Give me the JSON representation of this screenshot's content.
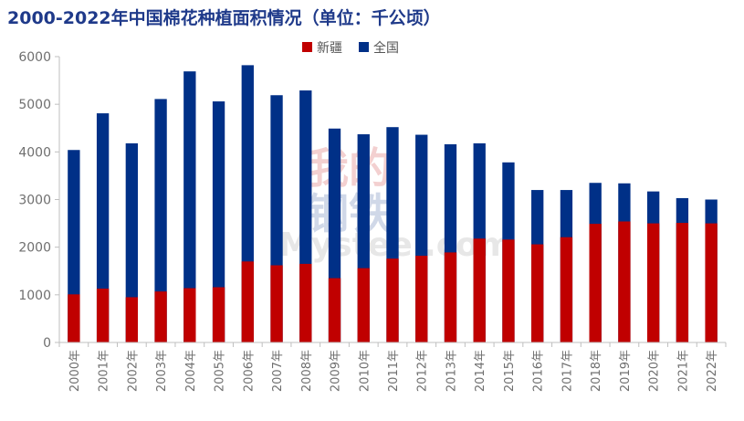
{
  "chart_data": {
    "type": "bar",
    "title": "2000-2022年中国棉花种植面积情况（单位：千公顷）",
    "categories": [
      "2000年",
      "2001年",
      "2002年",
      "2003年",
      "2004年",
      "2005年",
      "2006年",
      "2007年",
      "2008年",
      "2009年",
      "2010年",
      "2011年",
      "2012年",
      "2013年",
      "2014年",
      "2015年",
      "2016年",
      "2017年",
      "2018年",
      "2019年",
      "2020年",
      "2021年",
      "2022年"
    ],
    "series": [
      {
        "name": "新疆",
        "color": "#c00000",
        "values": [
          1010,
          1130,
          950,
          1070,
          1140,
          1160,
          1700,
          1620,
          1650,
          1350,
          1560,
          1760,
          1820,
          1890,
          2180,
          2160,
          2060,
          2210,
          2490,
          2540,
          2500,
          2510,
          2500
        ]
      },
      {
        "name": "全国",
        "color": "#003087",
        "values": [
          4040,
          4810,
          4180,
          5110,
          5690,
          5060,
          5820,
          5190,
          5290,
          4490,
          4370,
          4520,
          4360,
          4160,
          4180,
          3780,
          3200,
          3200,
          3350,
          3340,
          3170,
          3030,
          3000
        ]
      }
    ],
    "ylim": [
      0,
      6000
    ],
    "yticks": [
      0,
      1000,
      2000,
      3000,
      4000,
      5000,
      6000
    ],
    "legend_position": "top-center",
    "grid": false
  },
  "watermark": {
    "line1": "我的",
    "line2": "钢铁",
    "brand": "Mysteel.com"
  }
}
